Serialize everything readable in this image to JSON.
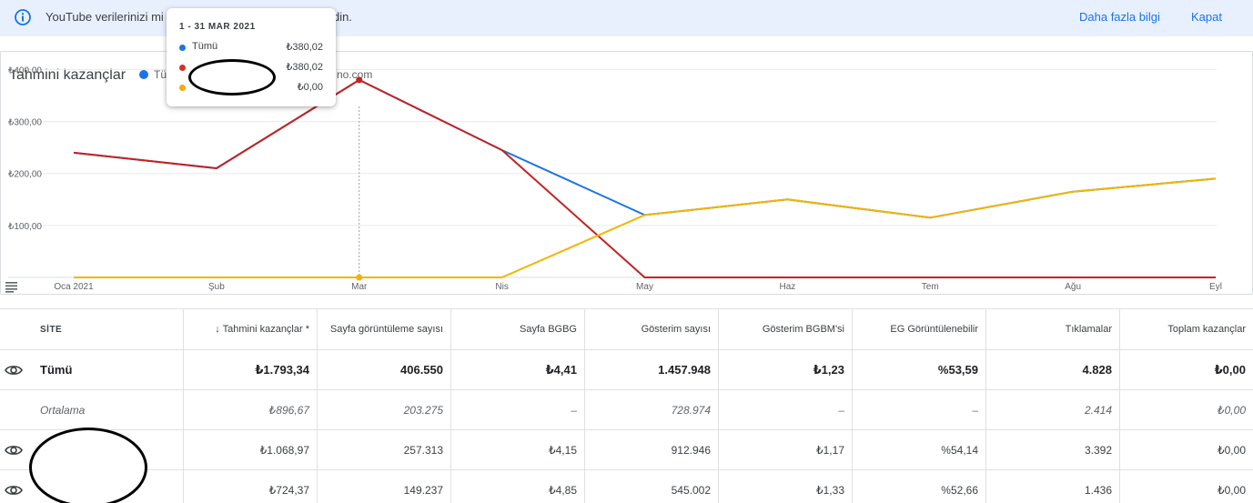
{
  "banner": {
    "text_before": "YouTube verilerinizi mi",
    "text_after": "e gidin.",
    "learn_more": "Daha fazla bilgi",
    "close": "Kapat",
    "bg_color": "#e8f0fe",
    "icon": "info-icon"
  },
  "chart": {
    "title": "Tahmini kazançlar",
    "legend": [
      {
        "label": "Tü",
        "color": "#1a73e8"
      },
      {
        "label": "no.com",
        "color": "#c5221f"
      }
    ],
    "tooltip": {
      "date": "1 - 31 MAR 2021",
      "rows": [
        {
          "label": "Tümü",
          "value": "₺380,02",
          "color": "#1a73e8"
        },
        {
          "label": "",
          "value": "₺380,02",
          "color": "#d93025"
        },
        {
          "label": "",
          "value": "₺0,00",
          "color": "#f9ab00"
        }
      ]
    },
    "y_ticks": [
      "₺400,00",
      "₺300,00",
      "₺200,00",
      "₺100,00"
    ],
    "menu_icon": "menu-icon"
  },
  "chart_data": {
    "type": "line",
    "categories": [
      "Oca 2021",
      "Şub",
      "Mar",
      "Nis",
      "May",
      "Haz",
      "Tem",
      "Ağu",
      "Eyl"
    ],
    "series": [
      {
        "name": "Tümü",
        "color": "#1a73e8",
        "values": [
          240,
          210,
          380,
          245,
          120,
          150,
          115,
          165,
          190
        ]
      },
      {
        "name": "",
        "color": "#c5221f",
        "values": [
          240,
          210,
          380,
          245,
          0,
          0,
          0,
          0,
          0
        ]
      },
      {
        "name": "",
        "color": "#f4b400",
        "values": [
          0,
          0,
          0,
          0,
          120,
          150,
          115,
          165,
          190
        ]
      }
    ],
    "ylim": [
      0,
      420
    ],
    "ytick_values": [
      400,
      300,
      200,
      100
    ],
    "highlight_index": 2,
    "grid": true
  },
  "table": {
    "headers": [
      "SİTE",
      "↓ Tahmini kazançlar *",
      "Sayfa görüntüleme sayısı",
      "Sayfa BGBG",
      "Gösterim sayısı",
      "Gösterim BGBM'si",
      "EG Görüntülenebilir",
      "Tıklamalar",
      "Toplam kazançlar"
    ],
    "rows": [
      {
        "site": "Tümü",
        "eye": true,
        "style": "bold",
        "cells": [
          "₺1.793,34",
          "406.550",
          "₺4,41",
          "1.457.948",
          "₺1,23",
          "%53,59",
          "4.828",
          "₺0,00"
        ]
      },
      {
        "site": "Ortalama",
        "eye": false,
        "style": "italic",
        "cells": [
          "₺896,67",
          "203.275",
          "–",
          "728.974",
          "–",
          "–",
          "2.414",
          "₺0,00"
        ]
      },
      {
        "site": "",
        "eye": true,
        "style": "normal",
        "cells": [
          "₺1.068,97",
          "257.313",
          "₺4,15",
          "912.946",
          "₺1,17",
          "%54,14",
          "3.392",
          "₺0,00"
        ]
      },
      {
        "site": "",
        "eye": true,
        "style": "normal",
        "cells": [
          "₺724,37",
          "149.237",
          "₺4,85",
          "545.002",
          "₺1,33",
          "%52,66",
          "1.436",
          "₺0,00"
        ]
      }
    ]
  }
}
